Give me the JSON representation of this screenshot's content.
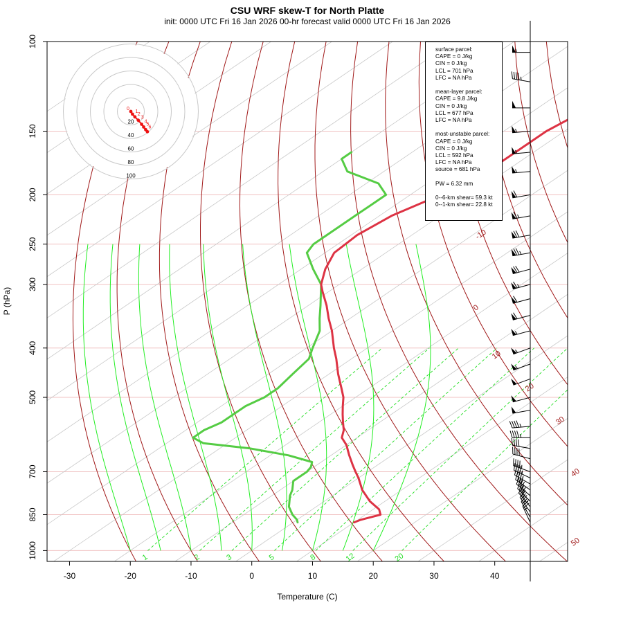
{
  "title": "CSU WRF skew-T for North Platte",
  "subtitle": "init: 0000 UTC Fri 16 Jan 2026     00-hr forecast valid 0000 UTC Fri 16 Jan 2026",
  "info_box": {
    "surface": [
      "surface parcel:",
      "CAPE = 0 J/kg",
      "CIN = 0 J/kg",
      "LCL = 701 hPa",
      "LFC = NA hPa"
    ],
    "mean_layer": [
      "mean-layer parcel:",
      "CAPE = 9.8 J/kg",
      "CIN = 0 J/kg",
      "LCL = 677 hPa",
      "LFC = NA hPa"
    ],
    "most_unstable": [
      "most-unstable parcel:",
      "CAPE = 0 J/kg",
      "CIN = 0 J/kg",
      "LCL = 592 hPa",
      "LFC = NA hPa",
      "source = 681 hPa"
    ],
    "pw": "PW =  6.32 mm",
    "shear": [
      "0--6-km shear= 59.3 kt",
      "0--1-km shear= 22.8 kt"
    ]
  },
  "colors": {
    "temperature": "#dd3344",
    "dewpoint": "#55cc44",
    "dry_adiabat": "#a01818",
    "moist_adiabat": "#22ee22",
    "mixing_ratio": "#22dd22",
    "isotherm": "#c8c8c8",
    "isobar": "#f0c0c0",
    "hodograph_ring": "#c8c8c8",
    "hodograph_trace": "#ee1111"
  },
  "chart_data": {
    "type": "skew-t",
    "title": "CSU WRF skew-T for North Platte",
    "xlabel": "Temperature (C)",
    "ylabel": "P (hPa)",
    "x_ticks": [
      -30,
      -20,
      -10,
      0,
      10,
      20,
      30,
      40
    ],
    "y_ticks": [
      100,
      150,
      200,
      250,
      300,
      400,
      500,
      700,
      850,
      1000
    ],
    "xlim": [
      -33.7,
      52
    ],
    "ylim": [
      1050,
      100
    ],
    "skew_deg_per_log_unit": 53.5,
    "dry_adiabat_labels": [
      -10,
      0,
      10,
      20,
      30,
      40,
      50
    ],
    "mixing_ratio_labels": [
      1,
      2,
      3,
      5,
      8,
      12,
      20
    ],
    "mixing_ratio_lines_gkg": [
      1,
      2,
      3,
      5,
      8,
      12,
      20
    ],
    "dry_adiabat_thetas_C": [
      -20,
      -10,
      0,
      10,
      20,
      30,
      40,
      50,
      60,
      70,
      80,
      90,
      100,
      110,
      120,
      130,
      140,
      150,
      160,
      170
    ],
    "moist_adiabat_thetae_C": [
      -20,
      -15,
      -10,
      -5,
      0,
      5,
      10,
      15,
      20
    ],
    "temperature": {
      "p": [
        880,
        870,
        865,
        850,
        830,
        800,
        760,
        720,
        700,
        680,
        650,
        620,
        600,
        580,
        560,
        540,
        520,
        500,
        480,
        450,
        420,
        400,
        370,
        350,
        330,
        310,
        300,
        280,
        260,
        240,
        220,
        200,
        190,
        180,
        170,
        160,
        150,
        140,
        130,
        120,
        110,
        105
      ],
      "t": [
        10,
        10.5,
        11,
        12.5,
        11,
        7.5,
        3.5,
        0,
        -2,
        -4,
        -7,
        -10,
        -12.5,
        -14,
        -16,
        -18,
        -20,
        -22,
        -24.5,
        -28.5,
        -32.5,
        -35.5,
        -40,
        -43.5,
        -47,
        -51,
        -53,
        -56,
        -58.5,
        -59,
        -58,
        -55,
        -53.5,
        -53,
        -53,
        -53,
        -53,
        -52,
        -51,
        -49,
        -46,
        -45
      ]
    },
    "dewpoint": {
      "p": [
        880,
        870,
        850,
        820,
        780,
        760,
        730,
        700,
        685,
        670,
        650,
        630,
        615,
        600,
        580,
        560,
        540,
        520,
        500,
        480,
        450,
        420,
        400,
        370,
        350,
        330,
        300,
        280,
        260,
        250,
        240,
        230,
        220,
        210,
        200,
        190,
        180,
        170,
        165
      ],
      "t": [
        0.7,
        0,
        -2,
        -4.5,
        -7,
        -8,
        -10,
        -10,
        -10.5,
        -11.5,
        -17,
        -25,
        -34,
        -37,
        -37,
        -36,
        -36,
        -36,
        -35,
        -35,
        -36,
        -37,
        -39,
        -42,
        -45,
        -48,
        -53,
        -58,
        -63,
        -64,
        -64,
        -64,
        -64,
        -64,
        -64,
        -68,
        -76,
        -80,
        -80
      ]
    },
    "hodograph": {
      "ring_labels": [
        20,
        40,
        60,
        80,
        100
      ],
      "point_labels": [
        "0",
        "1",
        "2",
        "3",
        "4",
        "5",
        "6"
      ],
      "u": [
        0,
        2.5,
        6,
        11,
        16,
        19,
        22,
        24.5
      ],
      "v": [
        0,
        -4,
        -8,
        -13,
        -19,
        -23,
        -27,
        -30
      ]
    },
    "wind_barbs": {
      "p": [
        105,
        120,
        135,
        150,
        165,
        180,
        200,
        220,
        240,
        260,
        280,
        300,
        320,
        345,
        370,
        400,
        430,
        460,
        500,
        530,
        570,
        600,
        630,
        660,
        700,
        720,
        740,
        760,
        780,
        800,
        820,
        840,
        860,
        880
      ],
      "speed_kt": [
        55,
        45,
        50,
        55,
        55,
        55,
        60,
        65,
        70,
        75,
        70,
        65,
        60,
        60,
        55,
        55,
        55,
        50,
        50,
        50,
        45,
        45,
        40,
        40,
        45,
        45,
        45,
        40,
        40,
        40,
        35,
        35,
        30,
        25
      ],
      "dir_deg": [
        270,
        280,
        270,
        265,
        265,
        265,
        260,
        260,
        260,
        260,
        255,
        255,
        255,
        255,
        255,
        250,
        250,
        250,
        255,
        260,
        265,
        270,
        280,
        285,
        290,
        295,
        300,
        305,
        310,
        315,
        320,
        325,
        330,
        335
      ]
    }
  }
}
